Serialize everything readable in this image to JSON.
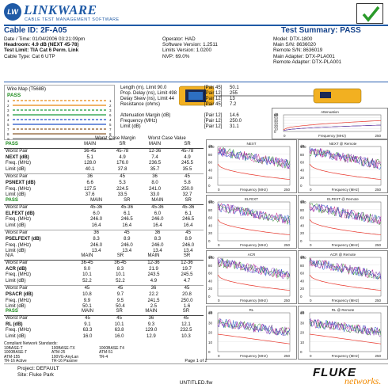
{
  "brand": {
    "logo_text": "LW",
    "name": "LINKWARE",
    "tagline": "CABLE TEST MANAGEMENT SOFTWARE"
  },
  "header": {
    "cable_id": "Cable ID: 2F-A05",
    "test_summary": "Test Summary: PASS"
  },
  "info_left": [
    "Date / Time: 01/04/2006 03:21:09pm",
    "Headroom: 4.9 dB (NEXT 45-78)",
    "Test Limit: TIA Cat 6 Perm. Link",
    "Cable Type: Cat 6 UTP"
  ],
  "info_mid": [
    "Operator: HAD",
    "Software Version: 1.2511",
    "Limits Version: 1.0200",
    "NVP: 69.0%"
  ],
  "info_right": [
    "Model: DTX-1800",
    "Main S/N: 8636020",
    "Remote S/N: 8636019",
    "Main Adapter: DTX-PLA001",
    "Remote Adapter: DTX-PLA001"
  ],
  "wiremap": {
    "title": "Wire Map (T568B)",
    "status": "PASS",
    "pins": [
      "1",
      "2",
      "3",
      "6",
      "4",
      "5",
      "7",
      "8",
      "S"
    ]
  },
  "summary": [
    {
      "label": "Length (m), Limit 90.0",
      "pair": "[Pair 45]",
      "value": "50.1"
    },
    {
      "label": "Prop. Delay (ns), Limit 498",
      "pair": "[Pair 12]",
      "value": "255"
    },
    {
      "label": "Delay Skew (ns), Limit 44",
      "pair": "[Pair 12]",
      "value": "13"
    },
    {
      "label": "Resistance (ohms)",
      "pair": "[Pair 45]",
      "value": "7.2"
    },
    {
      "label": "Attenuation Margin (dB)",
      "pair": "[Pair 12]",
      "value": "14.6"
    },
    {
      "label": "Frequency (MHz)",
      "pair": "[Pair 12]",
      "value": "250.0"
    },
    {
      "label": "Limit (dB)",
      "pair": "[Pair 12]",
      "value": "31.1"
    }
  ],
  "case_headers": {
    "worst_margin": "Worst Case Margin",
    "worst_value": "Worst Case Value"
  },
  "tables": [
    {
      "rows": [
        [
          "PASS",
          "MAIN",
          "SR",
          "MAIN",
          "SR"
        ],
        [
          "Worst Pair",
          "36-45",
          "45-78",
          "12-36",
          "45-78"
        ],
        [
          "NEXT (dB)",
          "5.1",
          "4.9",
          "7.4",
          "4.9"
        ],
        [
          "Freq. (MHz)",
          "128.0",
          "176.0",
          "236.5",
          "245.5"
        ],
        [
          "Limit (dB)",
          "40.1",
          "37.8",
          "35.7",
          "35.5"
        ],
        [
          "Worst Pair",
          "36",
          "45",
          "36",
          "45"
        ],
        [
          "PSNEXT (dB)",
          "6.6",
          "5.3",
          "8.0",
          "5.8"
        ],
        [
          "Freq. (MHz)",
          "127.5",
          "224.5",
          "241.0",
          "250.0"
        ],
        [
          "Limit (dB)",
          "37.6",
          "33.5",
          "33.0",
          "32.7"
        ]
      ]
    },
    {
      "rows": [
        [
          "PASS",
          "MAIN",
          "SR",
          "MAIN",
          "SR"
        ],
        [
          "Worst Pair",
          "45-36",
          "45-36",
          "45-36",
          "45-36"
        ],
        [
          "ELFEXT (dB)",
          "6.0",
          "6.1",
          "6.0",
          "6.1"
        ],
        [
          "Freq. (MHz)",
          "246.0",
          "246.5",
          "246.0",
          "246.5"
        ],
        [
          "Limit (dB)",
          "16.4",
          "16.4",
          "16.4",
          "16.4"
        ],
        [
          "Worst Pair",
          "36",
          "45",
          "36",
          "45"
        ],
        [
          "PSELFEXT (dB)",
          "8.3",
          "8.9",
          "8.3",
          "8.9"
        ],
        [
          "Freq. (MHz)",
          "246.0",
          "246.0",
          "246.0",
          "246.0"
        ],
        [
          "Limit (dB)",
          "13.4",
          "13.4",
          "13.4",
          "13.4"
        ]
      ]
    },
    {
      "rows": [
        [
          "N/A",
          "MAIN",
          "SR",
          "MAIN",
          "SR"
        ],
        [
          "Worst Pair",
          "36-45",
          "36-45",
          "12-36",
          "12-36"
        ],
        [
          "ACR (dB)",
          "9.0",
          "8.3",
          "21.9",
          "19.7"
        ],
        [
          "Freq. (MHz)",
          "10.1",
          "10.1",
          "243.5",
          "245.5"
        ],
        [
          "Limit (dB)",
          "52.2",
          "52.2",
          "4.9",
          "4.7"
        ],
        [
          "Worst Pair",
          "45",
          "45",
          "36",
          "45"
        ],
        [
          "PSACR (dB)",
          "10.8",
          "9.7",
          "22.2",
          "20.8"
        ],
        [
          "Freq. (MHz)",
          "9.9",
          "9.5",
          "241.5",
          "250.0"
        ],
        [
          "Limit (dB)",
          "50.1",
          "50.4",
          "2.5",
          "1.6"
        ]
      ]
    },
    {
      "rows": [
        [
          "PASS",
          "MAIN",
          "SR",
          "MAIN",
          "SR"
        ],
        [
          "Worst Pair",
          "45",
          "45",
          "36",
          "45"
        ],
        [
          "RL (dB)",
          "9.1",
          "10.1",
          "9.3",
          "12.1"
        ],
        [
          "Freq. (MHz)",
          "63.3",
          "63.8",
          "129.0",
          "232.5"
        ],
        [
          "Limit (dB)",
          "16.0",
          "16.0",
          "12.9",
          "10.3"
        ]
      ]
    }
  ],
  "standards": {
    "title": "Compliant Network Standards:",
    "items": [
      "10BASE-T",
      "100BASE-TX",
      "1000BASE-T4",
      "1000BASE-T",
      "ATM-25",
      "ATM-51",
      "ATM-155",
      "100VG-AnyLan",
      "TR-4",
      "TR-16 Active",
      "TR-16 Passive"
    ]
  },
  "charts": [
    {
      "title": "Attenuation",
      "y_ticks": [
        "dB",
        "60",
        "50",
        "40",
        "30",
        "20",
        "10",
        "0"
      ],
      "x_label": "Frequency (MHz)",
      "x_max": "250",
      "x_min": "0"
    },
    {
      "title": "NEXT",
      "y_ticks": [
        "dB",
        "100",
        "80",
        "60",
        "40",
        "20",
        "0"
      ],
      "x_label": "Frequency (MHz)",
      "x_max": "250",
      "x_min": "0"
    },
    {
      "title": "NEXT @ Remote",
      "y_ticks": [
        "dB",
        "100",
        "80",
        "60",
        "40",
        "20",
        "0"
      ],
      "x_label": "Frequency (MHz)",
      "x_max": "250",
      "x_min": "0"
    },
    {
      "title": "ELFEXT",
      "y_ticks": [
        "dB",
        "100",
        "80",
        "60",
        "40",
        "20",
        "0"
      ],
      "x_label": "Frequency (MHz)",
      "x_max": "250",
      "x_min": "0"
    },
    {
      "title": "ELFEXT @ Remote",
      "y_ticks": [
        "dB",
        "100",
        "80",
        "60",
        "40",
        "20",
        "0"
      ],
      "x_label": "Frequency (MHz)",
      "x_max": "250",
      "x_min": "0"
    },
    {
      "title": "ACR",
      "y_ticks": [
        "dB",
        "100",
        "80",
        "60",
        "40",
        "20",
        "0"
      ],
      "x_label": "Frequency (MHz)",
      "x_max": "250",
      "x_min": "0"
    },
    {
      "title": "ACR @ Remote",
      "y_ticks": [
        "dB",
        "100",
        "80",
        "60",
        "40",
        "20",
        "0"
      ],
      "x_label": "Frequency (MHz)",
      "x_max": "250",
      "x_min": "0"
    },
    {
      "title": "RL",
      "y_ticks": [
        "dB",
        "40",
        "30",
        "20",
        "10",
        "0"
      ],
      "x_label": "Frequency (MHz)",
      "x_max": "250",
      "x_min": "0"
    },
    {
      "title": "RL @ Remote",
      "y_ticks": [
        "dB",
        "40",
        "30",
        "20",
        "10",
        "0"
      ],
      "x_label": "Frequency (MHz)",
      "x_max": "250",
      "x_min": "0"
    }
  ],
  "footer": {
    "page": "Page 1 of 2",
    "project": "Project: DEFAULT",
    "site": "Site: Fluke Park",
    "file": "UNTITLED.flw",
    "fluke": "FLUKE",
    "networks": "networks."
  },
  "colors": {
    "accent": "#1f5aa6",
    "pass": "#1a8a1a",
    "limit": "#e8352a",
    "networks": "#f28a00"
  }
}
